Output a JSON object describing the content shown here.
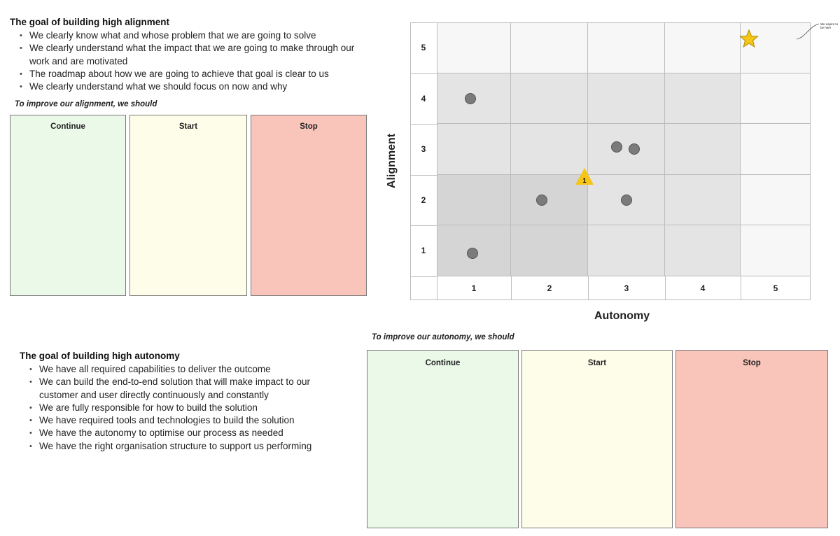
{
  "alignment_goal": {
    "title": "The goal of building high alignment",
    "items": [
      "We clearly know what and whose problem that we are going to solve",
      "We clearly understand what the impact that we are going to make through our work and are motivated",
      "The roadmap about how we are going to achieve that goal is clear to us",
      "We clearly understand what we should focus on now and why"
    ],
    "prompt": "To improve our alignment, we should",
    "boxes": {
      "continue": "Continue",
      "start": "Start",
      "stop": "Stop"
    }
  },
  "autonomy_goal": {
    "title": "The goal of building high autonomy",
    "items": [
      "We have all required capabilities to deliver the outcome",
      "We can build the end-to-end solution that will make impact to our customer and user directly continuously and constantly",
      "We are fully responsible for how to build the solution",
      "We have required tools and technologies to build the solution",
      "We have the autonomy to optimise our process as needed",
      "We have the right organisation structure to support us performing"
    ],
    "prompt": "To improve our autonomy, we should",
    "boxes": {
      "continue": "Continue",
      "start": "Start",
      "stop": "Stop"
    }
  },
  "matrix": {
    "x_axis_label": "Autonomy",
    "y_axis_label": "Alignment",
    "x_ticks": [
      "1",
      "2",
      "3",
      "4",
      "5"
    ],
    "y_ticks": [
      "5",
      "4",
      "3",
      "2",
      "1"
    ],
    "shading": {
      "dark": "#d5d5d5",
      "mid": "#e4e4e4",
      "light": "#f7f7f7",
      "zones": [
        [
          "light",
          "light",
          "light",
          "light",
          "light"
        ],
        [
          "mid",
          "mid",
          "mid",
          "mid",
          "light"
        ],
        [
          "mid",
          "mid",
          "mid",
          "mid",
          "light"
        ],
        [
          "dark",
          "dark",
          "mid",
          "mid",
          "light"
        ],
        [
          "dark",
          "dark",
          "mid",
          "mid",
          "light"
        ]
      ]
    },
    "votes": [
      {
        "autonomy": 0.95,
        "alignment": 4.0
      },
      {
        "autonomy": 0.98,
        "alignment": 0.95
      },
      {
        "autonomy": 1.9,
        "alignment": 2.0
      },
      {
        "autonomy": 2.87,
        "alignment": 3.05
      },
      {
        "autonomy": 3.1,
        "alignment": 3.0
      },
      {
        "autonomy": 3.0,
        "alignment": 2.0
      }
    ],
    "current": {
      "autonomy": 2.45,
      "alignment": 2.45,
      "label": "1",
      "color": "#f5c518"
    },
    "target": {
      "autonomy": 4.62,
      "alignment": 5.18,
      "color": "#f5c518"
    },
    "target_note": "We aspire to be here"
  }
}
